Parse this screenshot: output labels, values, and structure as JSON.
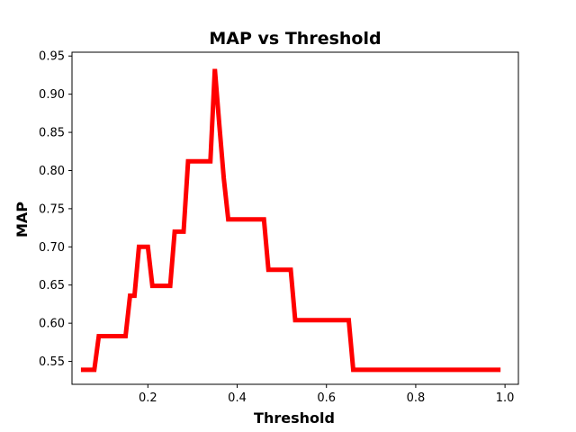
{
  "chart_data": {
    "type": "line",
    "title": "MAP vs Threshold",
    "xlabel": "Threshold",
    "ylabel": "MAP",
    "xlim": [
      0.03,
      1.03
    ],
    "ylim": [
      0.52,
      0.955
    ],
    "xticks": [
      "0.2",
      "0.4",
      "0.6",
      "0.8",
      "1.0"
    ],
    "yticks": [
      "0.55",
      "0.60",
      "0.65",
      "0.70",
      "0.75",
      "0.80",
      "0.85",
      "0.90",
      "0.95"
    ],
    "grid": false,
    "legend": "none",
    "series": [
      {
        "color": "#ff0000",
        "x": [
          0.05,
          0.06,
          0.07,
          0.08,
          0.09,
          0.1,
          0.11,
          0.12,
          0.13,
          0.14,
          0.15,
          0.16,
          0.17,
          0.18,
          0.19,
          0.2,
          0.21,
          0.22,
          0.23,
          0.24,
          0.25,
          0.26,
          0.27,
          0.28,
          0.29,
          0.3,
          0.31,
          0.32,
          0.33,
          0.34,
          0.35,
          0.36,
          0.37,
          0.38,
          0.39,
          0.4,
          0.41,
          0.42,
          0.43,
          0.44,
          0.45,
          0.46,
          0.47,
          0.48,
          0.49,
          0.5,
          0.51,
          0.52,
          0.53,
          0.54,
          0.55,
          0.56,
          0.57,
          0.58,
          0.59,
          0.6,
          0.61,
          0.62,
          0.63,
          0.64,
          0.65,
          0.66,
          0.67,
          0.68,
          0.69,
          0.7,
          0.75,
          0.8,
          0.85,
          0.9,
          0.95,
          0.99
        ],
        "y": [
          0.539,
          0.539,
          0.539,
          0.539,
          0.583,
          0.583,
          0.583,
          0.583,
          0.583,
          0.583,
          0.583,
          0.636,
          0.636,
          0.7,
          0.7,
          0.7,
          0.649,
          0.649,
          0.649,
          0.649,
          0.649,
          0.72,
          0.72,
          0.72,
          0.812,
          0.812,
          0.812,
          0.812,
          0.812,
          0.812,
          0.933,
          0.86,
          0.79,
          0.736,
          0.736,
          0.736,
          0.736,
          0.736,
          0.736,
          0.736,
          0.736,
          0.736,
          0.67,
          0.67,
          0.67,
          0.67,
          0.67,
          0.67,
          0.604,
          0.604,
          0.604,
          0.604,
          0.604,
          0.604,
          0.604,
          0.604,
          0.604,
          0.604,
          0.604,
          0.604,
          0.604,
          0.539,
          0.539,
          0.539,
          0.539,
          0.539,
          0.539,
          0.539,
          0.539,
          0.539,
          0.539,
          0.539
        ]
      }
    ]
  }
}
